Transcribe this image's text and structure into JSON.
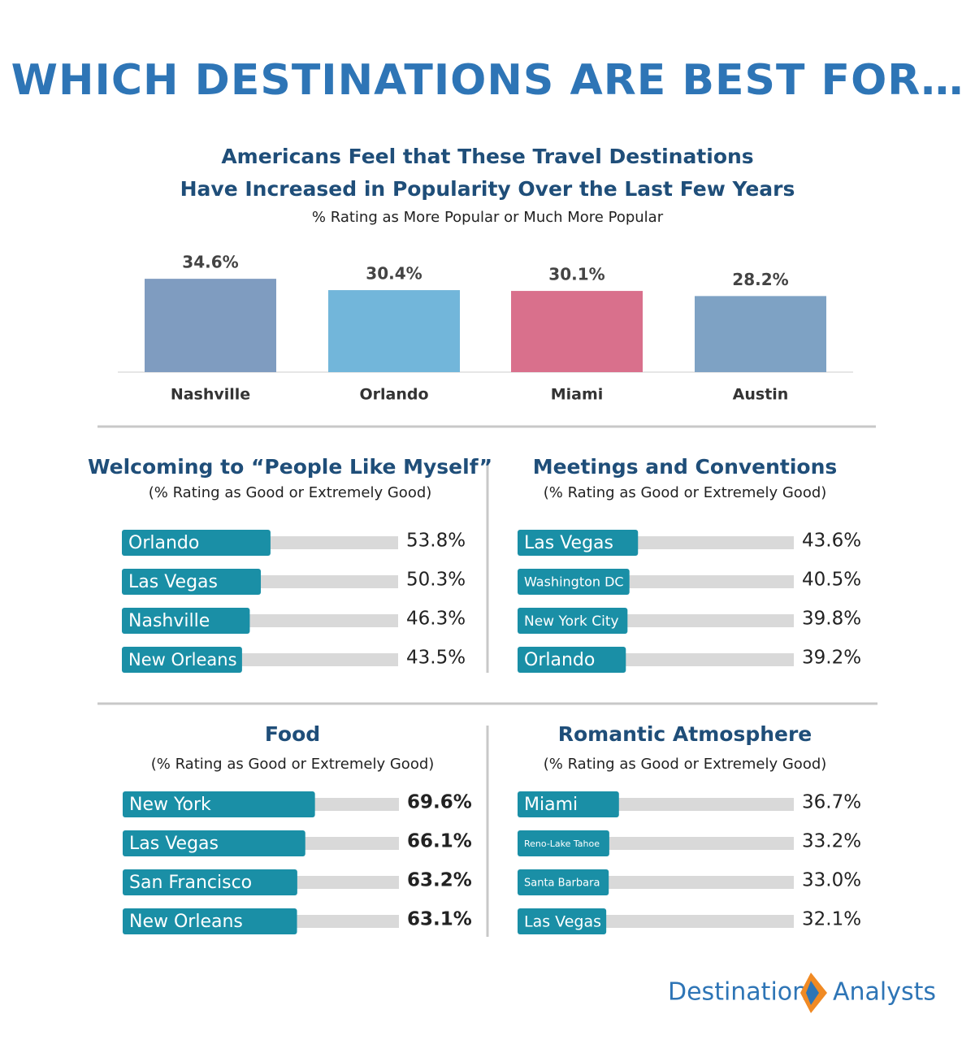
{
  "title": "WHICH DESTINATIONS ARE BEST FOR…",
  "chart_data": [
    {
      "type": "column",
      "title": [
        "Americans Feel that These Travel Destinations",
        "Have Increased in Popularity Over the Last Few Years"
      ],
      "subtitle": "% Rating as More Popular or Much More Popular",
      "categories": [
        "Nashville",
        "Orlando",
        "Miami",
        "Austin"
      ],
      "values": [
        34.6,
        30.4,
        30.1,
        28.2
      ],
      "value_labels": [
        "34.6%",
        "30.4%",
        "30.1%",
        "28.2%"
      ],
      "colors": [
        "#7f9cc0",
        "#72b6da",
        "#d9708c",
        "#7ea2c4"
      ]
    },
    {
      "type": "hbar",
      "title": "Welcoming to “People Like Myself”",
      "subtitle": "(% Rating as Good or Extremely Good)",
      "categories": [
        "Orlando",
        "Las Vegas",
        "Nashville",
        "New Orleans"
      ],
      "values": [
        53.8,
        50.3,
        46.3,
        43.5
      ],
      "value_labels": [
        "53.8%",
        "50.3%",
        "46.3%",
        "43.5%"
      ],
      "xlim": [
        0,
        100
      ],
      "color": "#1a8fa6",
      "track_color": "#d9d9d9"
    },
    {
      "type": "hbar",
      "title": "Meetings and Conventions",
      "subtitle": "(% Rating as Good or Extremely Good)",
      "categories": [
        "Las Vegas",
        "Washington DC",
        "New York City",
        "Orlando"
      ],
      "values": [
        43.6,
        40.5,
        39.8,
        39.2
      ],
      "value_labels": [
        "43.6%",
        "40.5%",
        "39.8%",
        "39.2%"
      ],
      "xlim": [
        0,
        100
      ],
      "color": "#1a8fa6",
      "track_color": "#d9d9d9"
    },
    {
      "type": "hbar",
      "title": "Food",
      "subtitle": "(% Rating as Good or Extremely Good)",
      "categories": [
        "New York",
        "Las Vegas",
        "San Francisco",
        "New Orleans"
      ],
      "values": [
        69.6,
        66.1,
        63.2,
        63.1
      ],
      "value_labels": [
        "69.6%",
        "66.1%",
        "63.2%",
        "63.1%"
      ],
      "xlim": [
        0,
        100
      ],
      "color": "#1a8fa6",
      "track_color": "#d9d9d9",
      "bold_value_labels": true
    },
    {
      "type": "hbar",
      "title": "Romantic Atmosphere",
      "subtitle": "(% Rating as Good or Extremely Good)",
      "categories": [
        "Miami",
        "Reno-Lake Tahoe",
        "Santa Barbara",
        "Las Vegas"
      ],
      "values": [
        36.7,
        33.2,
        33.0,
        32.1
      ],
      "value_labels": [
        "36.7%",
        "33.2%",
        "33.0%",
        "32.1%"
      ],
      "xlim": [
        0,
        100
      ],
      "color": "#1a8fa6",
      "track_color": "#d9d9d9"
    }
  ],
  "footer": {
    "logo_left": "Destination",
    "logo_right": "Analysts"
  }
}
